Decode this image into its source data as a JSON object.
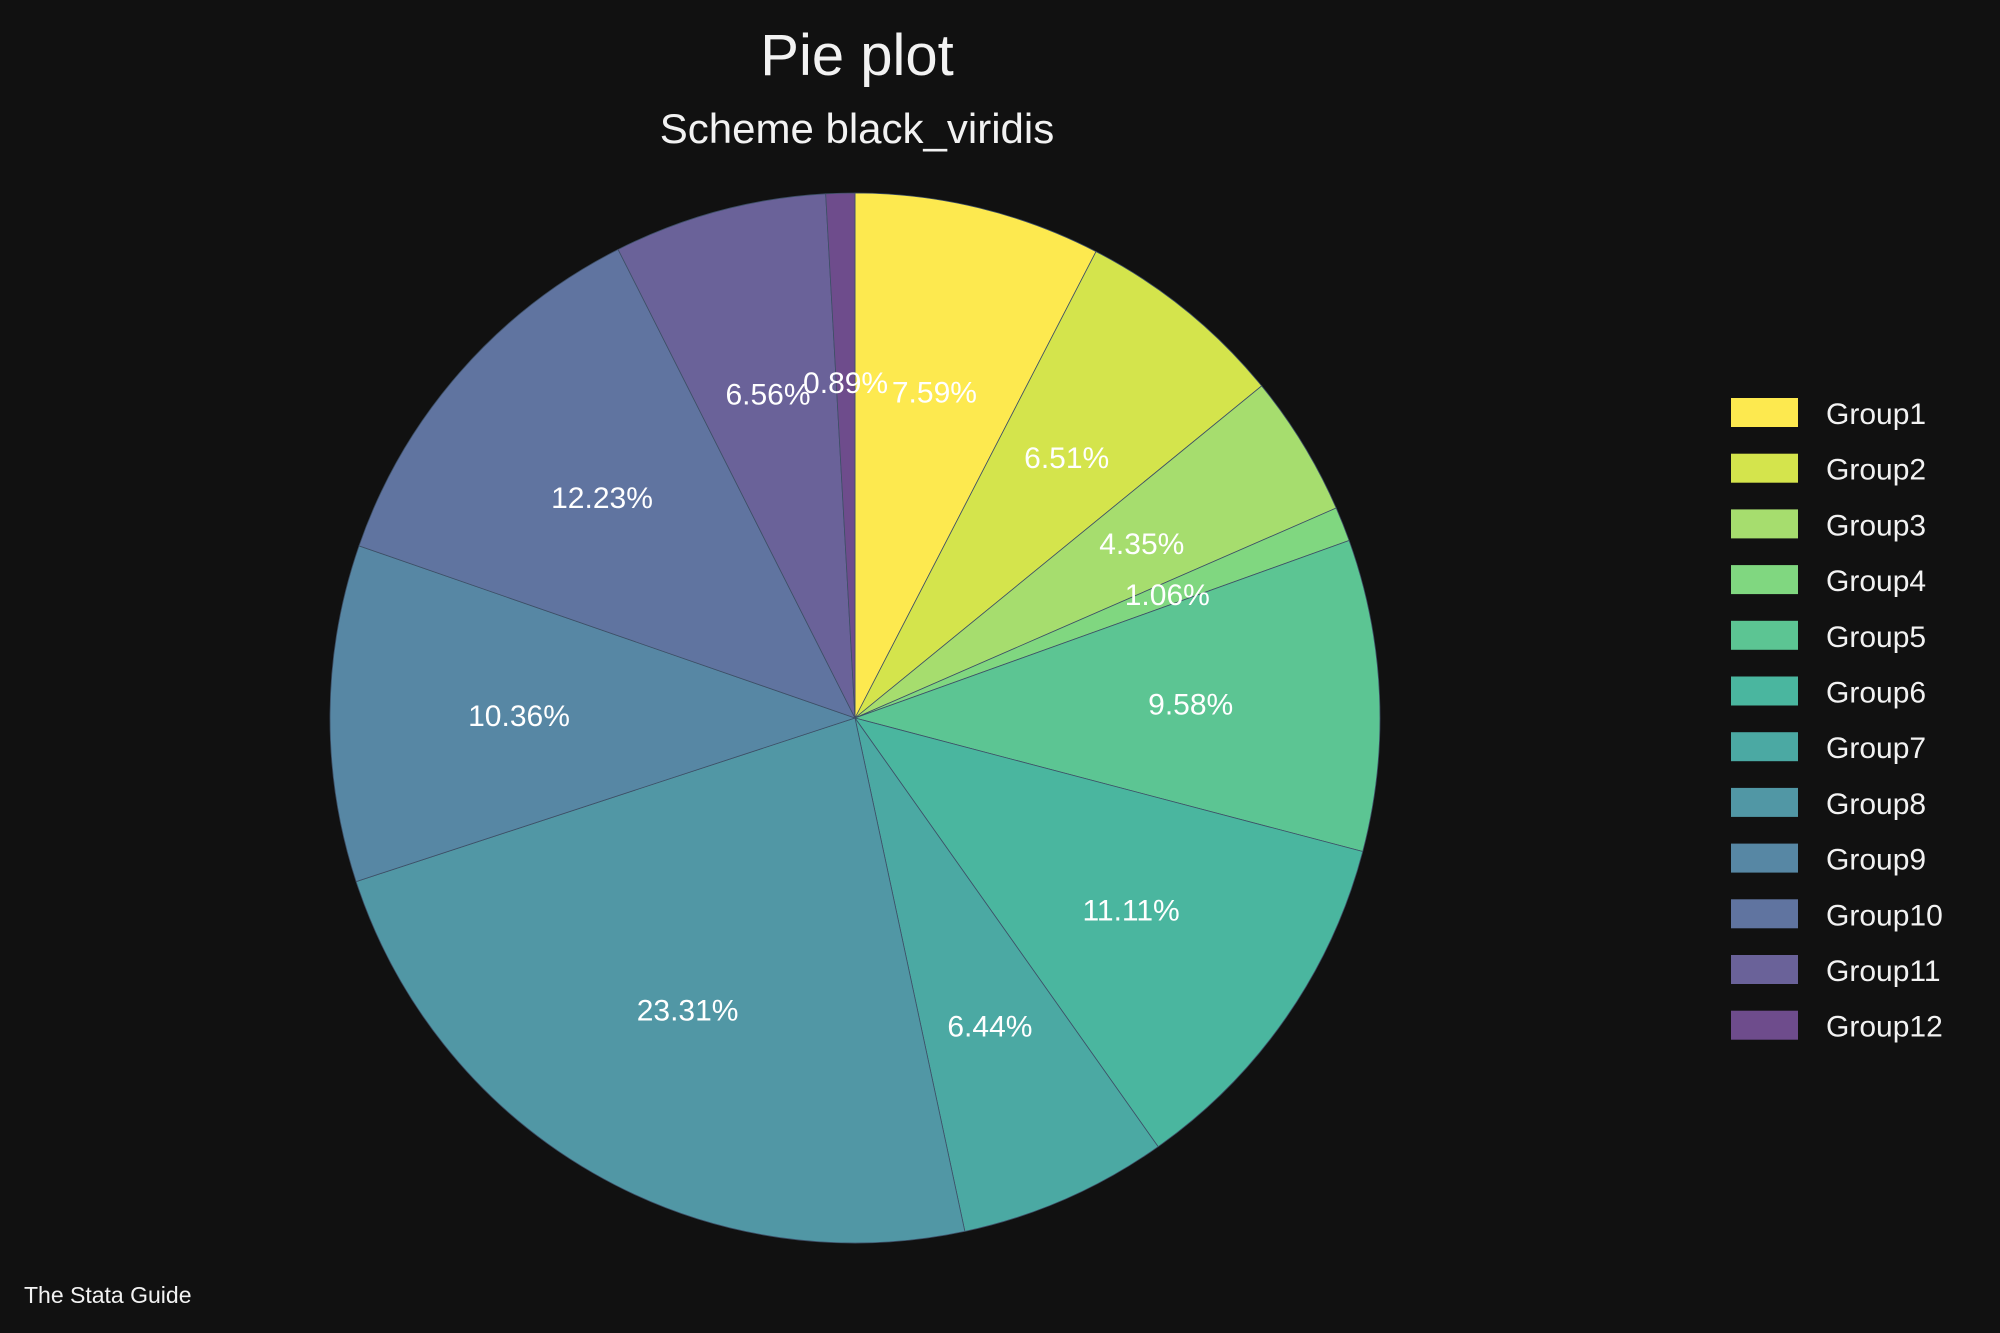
{
  "chart_data": {
    "type": "pie",
    "title": "Pie plot",
    "subtitle": "Scheme black_viridis",
    "note": "The Stata Guide",
    "legend_position": "right",
    "start": "12 o'clock",
    "direction": "clockwise",
    "slices": [
      {
        "label": "Group1",
        "value": 7.59,
        "display": "7.59%",
        "color": "#fde94f"
      },
      {
        "label": "Group2",
        "value": 6.51,
        "display": "6.51%",
        "color": "#d4e44c"
      },
      {
        "label": "Group3",
        "value": 4.35,
        "display": "4.35%",
        "color": "#a6dd6e"
      },
      {
        "label": "Group4",
        "value": 1.06,
        "display": "1.06%",
        "color": "#80d780"
      },
      {
        "label": "Group5",
        "value": 9.58,
        "display": "9.58%",
        "color": "#5cc593"
      },
      {
        "label": "Group6",
        "value": 11.11,
        "display": "11.11%",
        "color": "#4ab69f"
      },
      {
        "label": "Group7",
        "value": 6.44,
        "display": "6.44%",
        "color": "#4ba9a3"
      },
      {
        "label": "Group8",
        "value": 23.31,
        "display": "23.31%",
        "color": "#5197a5"
      },
      {
        "label": "Group9",
        "value": 10.36,
        "display": "10.36%",
        "color": "#5787a4"
      },
      {
        "label": "Group10",
        "value": 12.23,
        "display": "12.23%",
        "color": "#6074a0"
      },
      {
        "label": "Group11",
        "value": 6.56,
        "display": "6.56%",
        "color": "#6a6299"
      },
      {
        "label": "Group12",
        "value": 0.89,
        "display": "0.89%",
        "color": "#6e4c8c"
      }
    ]
  }
}
